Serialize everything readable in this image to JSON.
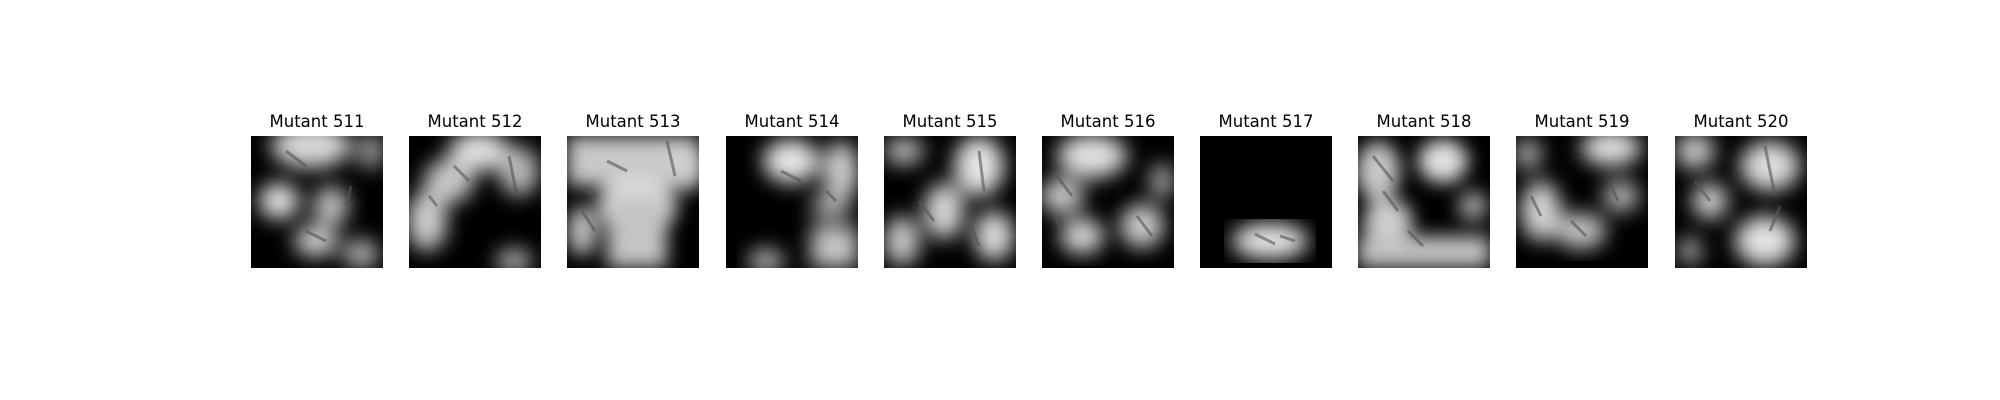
{
  "panels": [
    {
      "title": "Mutant 511"
    },
    {
      "title": "Mutant 512"
    },
    {
      "title": "Mutant 513"
    },
    {
      "title": "Mutant 514"
    },
    {
      "title": "Mutant 515"
    },
    {
      "title": "Mutant 516"
    },
    {
      "title": "Mutant 517"
    },
    {
      "title": "Mutant 518"
    },
    {
      "title": "Mutant 519"
    },
    {
      "title": "Mutant 520"
    }
  ]
}
